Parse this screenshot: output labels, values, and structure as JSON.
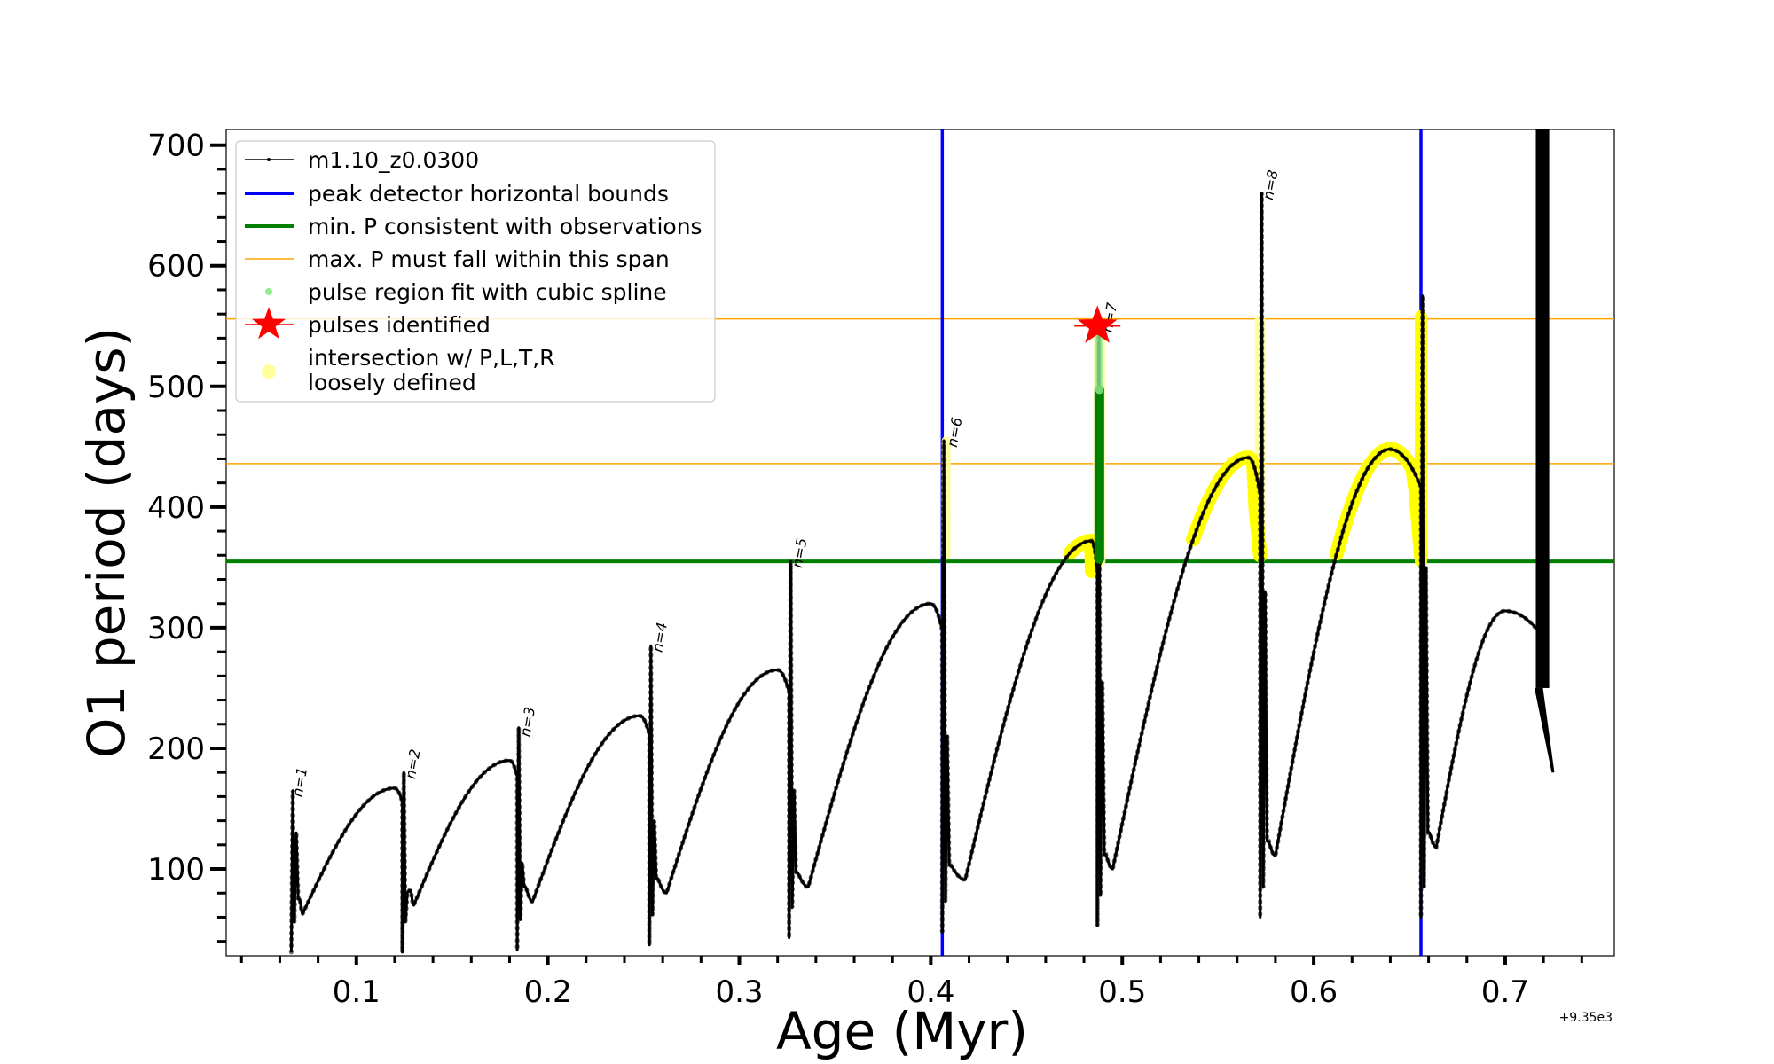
{
  "chart_data": {
    "type": "line",
    "xlabel": "Age (Myr)",
    "ylabel": "O1 period (days)",
    "x_offset_label": "+9.35e3",
    "xlim": [
      0.032,
      0.757
    ],
    "ylim": [
      28,
      713
    ],
    "x_ticks": [
      0.1,
      0.2,
      0.3,
      0.4,
      0.5,
      0.6,
      0.7
    ],
    "x_tick_labels": [
      "0.1",
      "0.2",
      "0.3",
      "0.4",
      "0.5",
      "0.6",
      "0.7"
    ],
    "y_ticks": [
      100,
      200,
      300,
      400,
      500,
      600,
      700
    ],
    "y_tick_labels": [
      "100",
      "200",
      "300",
      "400",
      "500",
      "600",
      "700"
    ],
    "legend": [
      {
        "label": "m1.10_z0.0300",
        "marker": "line-dot",
        "color": "#000000"
      },
      {
        "label": "peak detector horizontal bounds",
        "marker": "line",
        "color": "#0000ff"
      },
      {
        "label": "min. P consistent with observations",
        "marker": "line",
        "color": "#008000"
      },
      {
        "label": "max. P must fall within this span",
        "marker": "line",
        "color": "#ffa500"
      },
      {
        "label": "pulse region fit with cubic spline",
        "marker": "dot",
        "color": "#90ee90"
      },
      {
        "label": "pulses identified",
        "marker": "star",
        "color": "#ff0000"
      },
      {
        "label": "intersection w/ P,L,T,R",
        "label2": "loosely defined",
        "marker": "circle",
        "color": "#ffff99"
      }
    ],
    "peak_detector_bounds_x": [
      0.406,
      0.656
    ],
    "min_period": 355,
    "max_period_span": [
      436,
      556
    ],
    "pulse_labels": [
      {
        "text": "n=1",
        "x": 0.066,
        "y": 165
      },
      {
        "text": "n=2",
        "x": 0.125,
        "y": 180
      },
      {
        "text": "n=3",
        "x": 0.185,
        "y": 215
      },
      {
        "text": "n=4",
        "x": 0.254,
        "y": 285
      },
      {
        "text": "n=5",
        "x": 0.327,
        "y": 355
      },
      {
        "text": "n=6",
        "x": 0.408,
        "y": 455
      },
      {
        "text": "n=7",
        "x": 0.489,
        "y": 550
      },
      {
        "text": "n=8",
        "x": 0.573,
        "y": 660
      }
    ],
    "identified_pulse": {
      "x": 0.487,
      "y": 550
    },
    "series": [
      {
        "name": "m1.10_z0.0300",
        "color": "#000000",
        "cycles": [
          {
            "start": 0.066,
            "end": 0.124,
            "min_x": 0.072,
            "min_y": 63,
            "max_x": 0.12,
            "max_y": 167,
            "flash_low": 31,
            "flash_high": 165,
            "flash_end": 130
          },
          {
            "start": 0.124,
            "end": 0.184,
            "min_x": 0.13,
            "min_y": 70,
            "max_x": 0.18,
            "max_y": 190,
            "flash_low": 31,
            "flash_high": 180,
            "flash_end": 80
          },
          {
            "start": 0.184,
            "end": 0.253,
            "min_x": 0.192,
            "min_y": 73,
            "max_x": 0.248,
            "max_y": 227,
            "flash_low": 33,
            "flash_high": 217,
            "flash_end": 105
          },
          {
            "start": 0.253,
            "end": 0.326,
            "min_x": 0.262,
            "min_y": 80,
            "max_x": 0.32,
            "max_y": 265,
            "flash_low": 37,
            "flash_high": 285,
            "flash_end": 140
          },
          {
            "start": 0.326,
            "end": 0.406,
            "min_x": 0.336,
            "min_y": 85,
            "max_x": 0.4,
            "max_y": 320,
            "flash_low": 43,
            "flash_high": 355,
            "flash_end": 165
          },
          {
            "start": 0.406,
            "end": 0.487,
            "min_x": 0.418,
            "min_y": 91,
            "max_x": 0.484,
            "max_y": 372,
            "flash_low": 48,
            "flash_high": 455,
            "flash_end": 210
          },
          {
            "start": 0.487,
            "end": 0.572,
            "min_x": 0.495,
            "min_y": 100,
            "max_x": 0.566,
            "max_y": 441,
            "flash_low": 53,
            "flash_high": 550,
            "flash_end": 255
          },
          {
            "start": 0.572,
            "end": 0.656,
            "min_x": 0.58,
            "min_y": 111,
            "max_x": 0.64,
            "max_y": 448,
            "flash_low": 60,
            "flash_high": 660,
            "flash_end": 330
          },
          {
            "start": 0.656,
            "end": 0.72,
            "min_x": 0.664,
            "min_y": 118,
            "max_x": 0.7,
            "max_y": 314,
            "flash_low": 60,
            "flash_high": 575,
            "flash_end": 350
          }
        ],
        "final": {
          "band_x_start": 0.716,
          "band_x_end": 0.723,
          "end_y": 180
        }
      }
    ]
  }
}
